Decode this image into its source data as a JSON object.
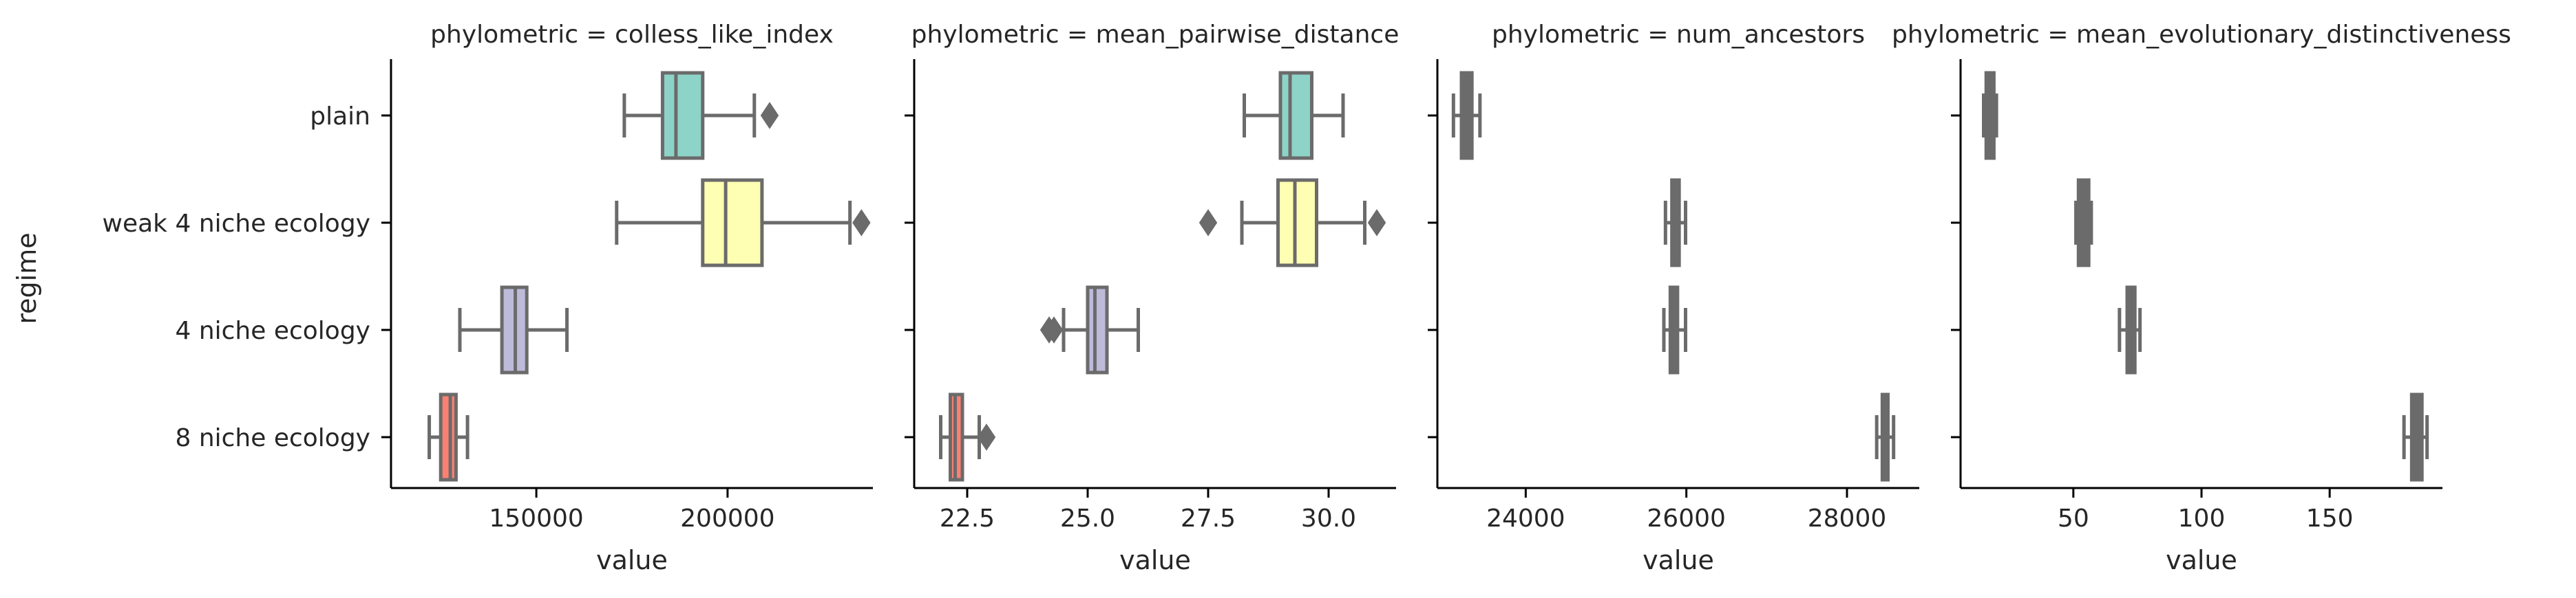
{
  "chart_data": {
    "type": "box",
    "ylabel": "regime",
    "categories": [
      "plain",
      "weak 4 niche ecology",
      "4 niche ecology",
      "8 niche ecology"
    ],
    "colors": [
      "#8dd3c7",
      "#ffffb3",
      "#bebada",
      "#fb8072"
    ],
    "panels": [
      {
        "title": "phylometric = colless_like_index",
        "xlabel": "value",
        "xlim": [
          112000,
          238000
        ],
        "xticks": [
          150000,
          200000
        ],
        "xtick_labels": [
          "150000",
          "200000"
        ],
        "boxes": [
          {
            "whislo": 173000,
            "q1": 183000,
            "med": 186500,
            "q3": 193500,
            "whishi": 207000,
            "fliers": [
              211000
            ]
          },
          {
            "whislo": 171000,
            "q1": 193500,
            "med": 199500,
            "q3": 209000,
            "whishi": 232000,
            "fliers": [
              235000
            ]
          },
          {
            "whislo": 130000,
            "q1": 141000,
            "med": 144500,
            "q3": 147500,
            "whishi": 158000,
            "fliers": []
          },
          {
            "whislo": 122000,
            "q1": 125000,
            "med": 127500,
            "q3": 129000,
            "whishi": 132000,
            "fliers": []
          }
        ]
      },
      {
        "title": "phylometric = mean_pairwise_distance",
        "xlabel": "value",
        "xlim": [
          21.4,
          31.4
        ],
        "xticks": [
          22.5,
          25.0,
          27.5,
          30.0
        ],
        "xtick_labels": [
          "22.5",
          "25.0",
          "27.5",
          "30.0"
        ],
        "boxes": [
          {
            "whislo": 28.25,
            "q1": 29.0,
            "med": 29.2,
            "q3": 29.65,
            "whishi": 30.3,
            "fliers": []
          },
          {
            "whislo": 28.2,
            "q1": 28.95,
            "med": 29.3,
            "q3": 29.75,
            "whishi": 30.75,
            "fliers": [
              27.5,
              31.0
            ]
          },
          {
            "whislo": 24.5,
            "q1": 25.0,
            "med": 25.15,
            "q3": 25.4,
            "whishi": 26.05,
            "fliers": [
              24.2,
              24.3
            ]
          },
          {
            "whislo": 21.95,
            "q1": 22.15,
            "med": 22.25,
            "q3": 22.4,
            "whishi": 22.75,
            "fliers": [
              22.9
            ]
          }
        ]
      },
      {
        "title": "phylometric = num_ancestors",
        "xlabel": "value",
        "xlim": [
          22900,
          28900
        ],
        "xticks": [
          24000,
          26000,
          28000
        ],
        "xtick_labels": [
          "24000",
          "26000",
          "28000"
        ],
        "boxes": [
          {
            "whislo": 23100,
            "q1": 23200,
            "med": 23250,
            "q3": 23330,
            "whishi": 23430,
            "fliers": []
          },
          {
            "whislo": 25740,
            "q1": 25820,
            "med": 25870,
            "q3": 25910,
            "whishi": 25990,
            "fliers": []
          },
          {
            "whislo": 25720,
            "q1": 25800,
            "med": 25850,
            "q3": 25890,
            "whishi": 25990,
            "fliers": []
          },
          {
            "whislo": 28370,
            "q1": 28440,
            "med": 28480,
            "q3": 28510,
            "whishi": 28580,
            "fliers": []
          }
        ]
      },
      {
        "title": "phylometric = mean_evolutionary_distinctiveness",
        "xlabel": "value",
        "xlim": [
          6,
          194
        ],
        "xticks": [
          50,
          100,
          150
        ],
        "xtick_labels": [
          "50",
          "100",
          "150"
        ],
        "boxes": [
          {
            "whislo": 15,
            "q1": 16,
            "med": 17,
            "q3": 19,
            "whishi": 20,
            "fliers": []
          },
          {
            "whislo": 51,
            "q1": 52,
            "med": 54,
            "q3": 56,
            "whishi": 57,
            "fliers": []
          },
          {
            "whislo": 68,
            "q1": 71,
            "med": 72,
            "q3": 74,
            "whishi": 76,
            "fliers": []
          },
          {
            "whislo": 179,
            "q1": 182,
            "med": 184,
            "q3": 186,
            "whishi": 188,
            "fliers": []
          }
        ]
      }
    ]
  }
}
